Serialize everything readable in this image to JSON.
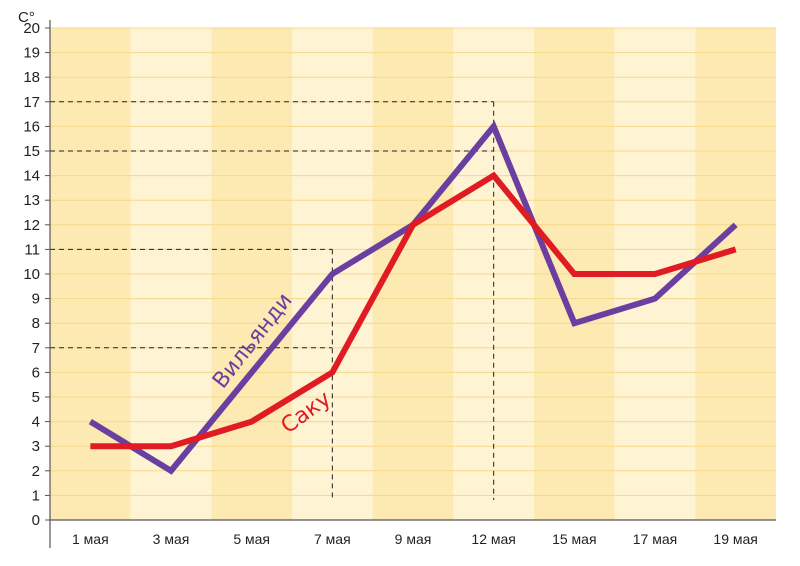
{
  "chart_data": {
    "type": "line",
    "unit_label": "C°",
    "categories": [
      "1 мая",
      "3 мая",
      "5 мая",
      "7 мая",
      "9 мая",
      "12 мая",
      "15 мая",
      "17 мая",
      "19 мая"
    ],
    "y_ticks": [
      "0",
      "1",
      "2",
      "3",
      "4",
      "5",
      "6",
      "7",
      "8",
      "9",
      "10",
      "11",
      "12",
      "13",
      "14",
      "15",
      "16",
      "17",
      "18",
      "19",
      "20"
    ],
    "ylim": [
      0,
      20
    ],
    "series": [
      {
        "name": "Вильянди",
        "color": "#6b3fa0",
        "values": [
          4,
          2,
          6,
          10,
          12,
          16,
          8,
          9,
          12
        ]
      },
      {
        "name": "Саку",
        "color": "#e01b24",
        "values": [
          3,
          3,
          4,
          6,
          12,
          14,
          10,
          10,
          11
        ]
      }
    ],
    "reference_lines": [
      {
        "category": "7 мая",
        "values": [
          11,
          7
        ]
      },
      {
        "category": "12 мая",
        "values": [
          17,
          15
        ]
      }
    ],
    "background_colors": [
      "#fde9b2",
      "#fef3d2"
    ],
    "grid": true
  }
}
